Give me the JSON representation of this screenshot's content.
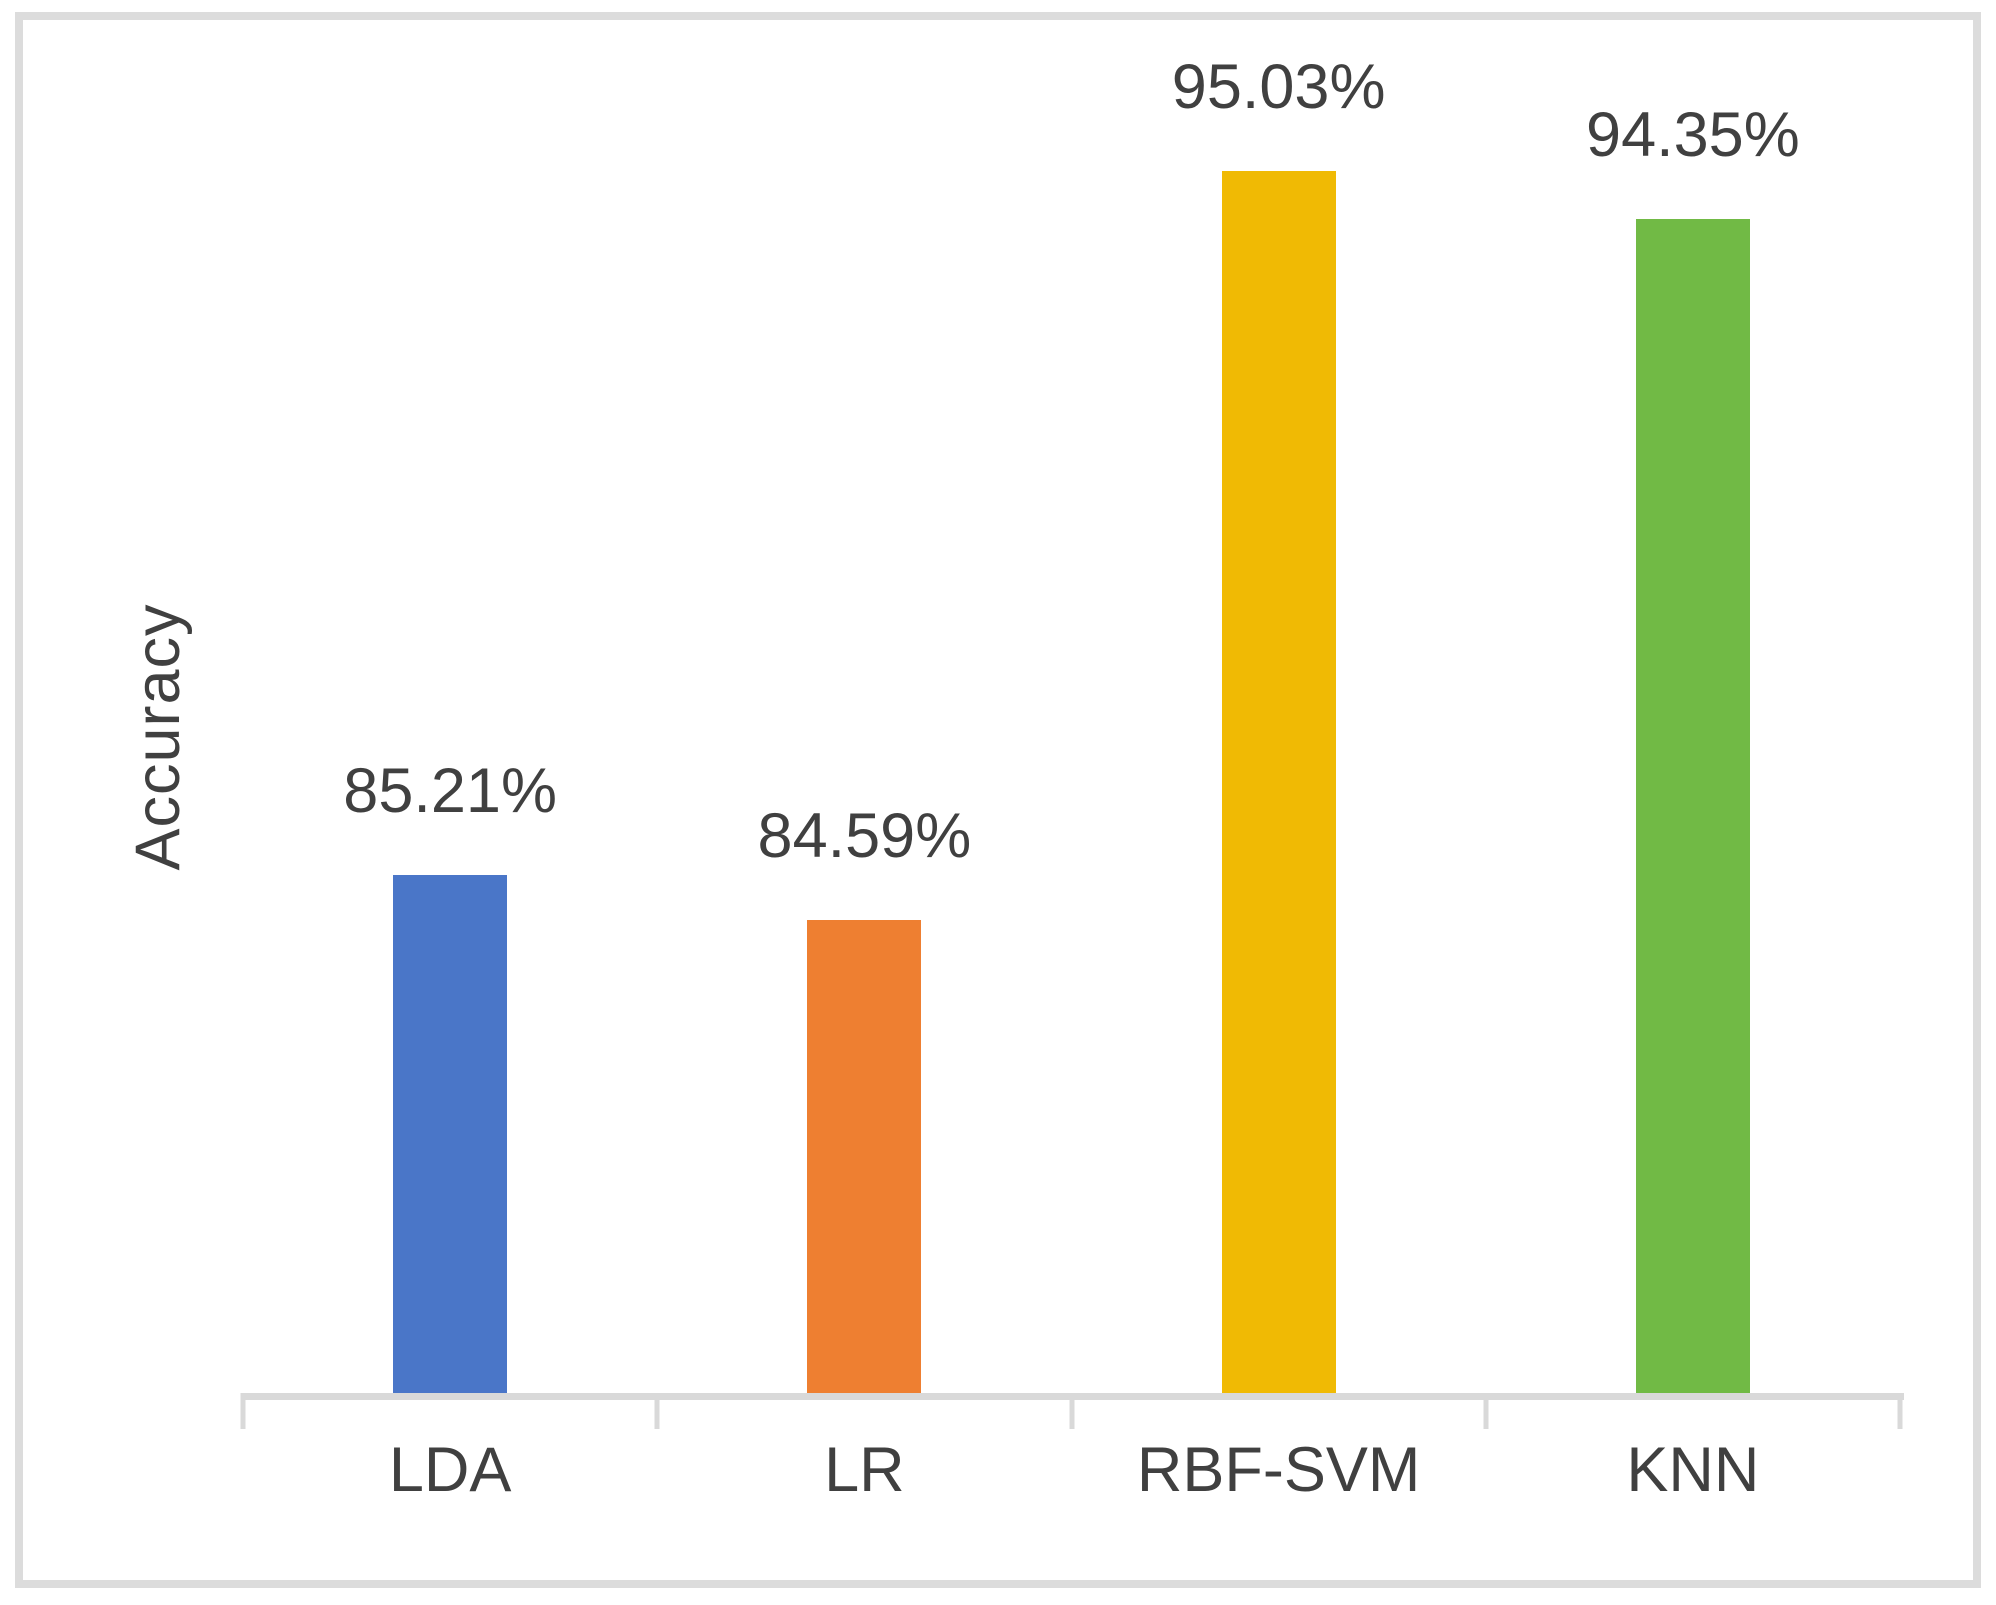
{
  "figure": {
    "background_color": "#ffffff",
    "frame_color": "#dcdcdc",
    "text_color": "#404040",
    "axis_color": "#d9d9d9"
  },
  "chart_data": {
    "type": "bar",
    "title": "",
    "xlabel": "",
    "ylabel": "Accuracy",
    "categories": [
      "LDA",
      "LR",
      "RBF-SVM",
      "KNN"
    ],
    "values": [
      85.21,
      84.59,
      95.03,
      94.35
    ],
    "data_labels": [
      "85.21%",
      "84.59%",
      "95.03%",
      "94.35%"
    ],
    "bar_colors": [
      "#4a76c8",
      "#ee7f31",
      "#f0ba04",
      "#71ba45"
    ],
    "ylim": [
      78,
      96.5
    ],
    "grid": false,
    "legend_position": "none",
    "y_axis_ticks_visible": false,
    "x_axis_tick_marks": 5
  }
}
